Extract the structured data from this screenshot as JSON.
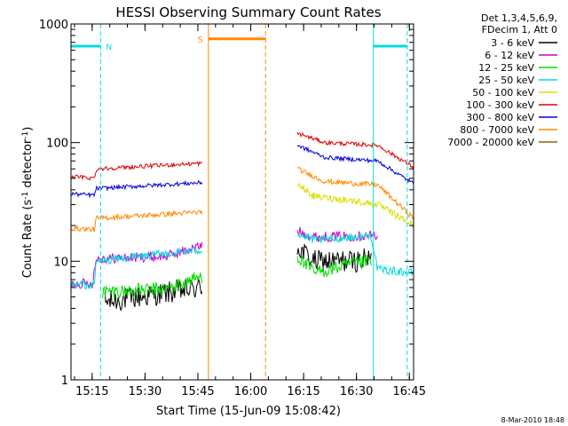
{
  "chart_data": {
    "type": "line",
    "title": "HESSI Observing Summary Count Rates",
    "xlabel": "Start Time (15-Jun-09 15:08:42)",
    "ylabel_main": "Count Rate (s",
    "ylabel_sup1": "-1",
    "ylabel_mid": " detector",
    "ylabel_sup2": "-1",
    "ylabel_end": ")",
    "y_scale": "log",
    "ylim": [
      1,
      1000
    ],
    "xlim_minutes": [
      15.15,
      16.77
    ],
    "x_ticks": [
      {
        "label": "15:15",
        "t": 15.25
      },
      {
        "label": "15:30",
        "t": 15.5
      },
      {
        "label": "15:45",
        "t": 15.75
      },
      {
        "label": "16:00",
        "t": 16.0
      },
      {
        "label": "16:15",
        "t": 16.25
      },
      {
        "label": "16:30",
        "t": 16.5
      },
      {
        "label": "16:45",
        "t": 16.75
      }
    ],
    "y_ticks": [
      {
        "label": "1",
        "v": 1
      },
      {
        "label": "10",
        "v": 10
      },
      {
        "label": "100",
        "v": 100
      },
      {
        "label": "1000",
        "v": 1000
      }
    ],
    "legend_header": [
      "Det 1,3,4,5,6,9,",
      "FDecim 1, Att 0"
    ],
    "series": [
      {
        "name": "3 - 6 keV",
        "color": "#000000",
        "segments": [
          [
            [
              15.31,
              4.5
            ],
            [
              15.77,
              6.0
            ]
          ],
          [
            [
              16.22,
              13.0
            ],
            [
              16.3,
              10.0
            ],
            [
              16.49,
              10.0
            ],
            [
              16.57,
              10.5
            ]
          ]
        ]
      },
      {
        "name": "6 - 12 keV",
        "color": "#cc00cc",
        "segments": [
          [
            [
              15.15,
              6.5
            ],
            [
              15.25,
              6.5
            ],
            [
              15.27,
              10.5
            ],
            [
              15.6,
              11.0
            ],
            [
              15.77,
              13.5
            ]
          ],
          [
            [
              16.22,
              18.0
            ],
            [
              16.3,
              16.0
            ],
            [
              16.6,
              16.5
            ]
          ]
        ]
      },
      {
        "name": "12 - 25 keV",
        "color": "#00dd00",
        "segments": [
          [
            [
              15.3,
              5.5
            ],
            [
              15.6,
              5.8
            ],
            [
              15.77,
              7.5
            ]
          ],
          [
            [
              16.22,
              11.0
            ],
            [
              16.3,
              8.0
            ],
            [
              16.49,
              9.5
            ],
            [
              16.57,
              10.0
            ]
          ]
        ]
      },
      {
        "name": "25 - 50 keV",
        "color": "#00dddd",
        "segments": [
          [
            [
              15.15,
              6.3
            ],
            [
              15.26,
              6.3
            ],
            [
              15.27,
              10.0
            ],
            [
              15.77,
              12.5
            ]
          ],
          [
            [
              16.22,
              17.0
            ],
            [
              16.3,
              15.0
            ],
            [
              16.57,
              16.5
            ],
            [
              16.6,
              8.5
            ],
            [
              16.77,
              8.0
            ]
          ]
        ]
      },
      {
        "name": "50 - 100 keV",
        "color": "#dddd00",
        "segments": [
          [
            [
              16.22,
              45.0
            ],
            [
              16.3,
              35.0
            ],
            [
              16.45,
              33.0
            ],
            [
              16.6,
              30.0
            ],
            [
              16.77,
              20.0
            ]
          ]
        ]
      },
      {
        "name": "100 - 300 keV",
        "color": "#dd0000",
        "segments": [
          [
            [
              15.15,
              52.0
            ],
            [
              15.26,
              50.0
            ],
            [
              15.27,
              60.0
            ],
            [
              15.77,
              67.0
            ]
          ],
          [
            [
              16.22,
              120.0
            ],
            [
              16.35,
              100.0
            ],
            [
              16.6,
              95.0
            ],
            [
              16.77,
              62.0
            ]
          ]
        ]
      },
      {
        "name": "300 - 800 keV",
        "color": "#0000dd",
        "segments": [
          [
            [
              15.15,
              37.0
            ],
            [
              15.26,
              36.0
            ],
            [
              15.27,
              41.0
            ],
            [
              15.77,
              46.0
            ]
          ],
          [
            [
              16.22,
              95.0
            ],
            [
              16.35,
              75.0
            ],
            [
              16.6,
              70.0
            ],
            [
              16.77,
              45.0
            ]
          ]
        ]
      },
      {
        "name": "800 - 7000 keV",
        "color": "#ff8800",
        "segments": [
          [
            [
              15.15,
              19.0
            ],
            [
              15.26,
              18.5
            ],
            [
              15.27,
              23.0
            ],
            [
              15.77,
              26.0
            ]
          ],
          [
            [
              16.22,
              60.0
            ],
            [
              16.35,
              47.0
            ],
            [
              16.6,
              44.0
            ],
            [
              16.77,
              23.0
            ]
          ]
        ]
      },
      {
        "name": "7000 - 20000 keV",
        "color": "#886600",
        "segments": []
      }
    ],
    "flags": [
      {
        "label": "N",
        "color": "#00dddd",
        "level": 650,
        "spans": [
          [
            15.15,
            15.29
          ],
          [
            16.58,
            16.74
          ]
        ]
      },
      {
        "label": "S",
        "color": "#ff8800",
        "level": 750,
        "spans": [
          [
            15.8,
            16.07
          ]
        ]
      }
    ],
    "vlines": [
      {
        "t": 15.15,
        "color": "#00dddd",
        "style": "solid"
      },
      {
        "t": 15.29,
        "color": "#00dddd",
        "style": "dashed"
      },
      {
        "t": 15.8,
        "color": "#ff8800",
        "style": "solid"
      },
      {
        "t": 16.07,
        "color": "#ff8800",
        "style": "dashed"
      },
      {
        "t": 16.58,
        "color": "#00dddd",
        "style": "solid"
      },
      {
        "t": 16.74,
        "color": "#00dddd",
        "style": "dashed"
      }
    ]
  },
  "footer": "8-Mar-2010 18:48"
}
